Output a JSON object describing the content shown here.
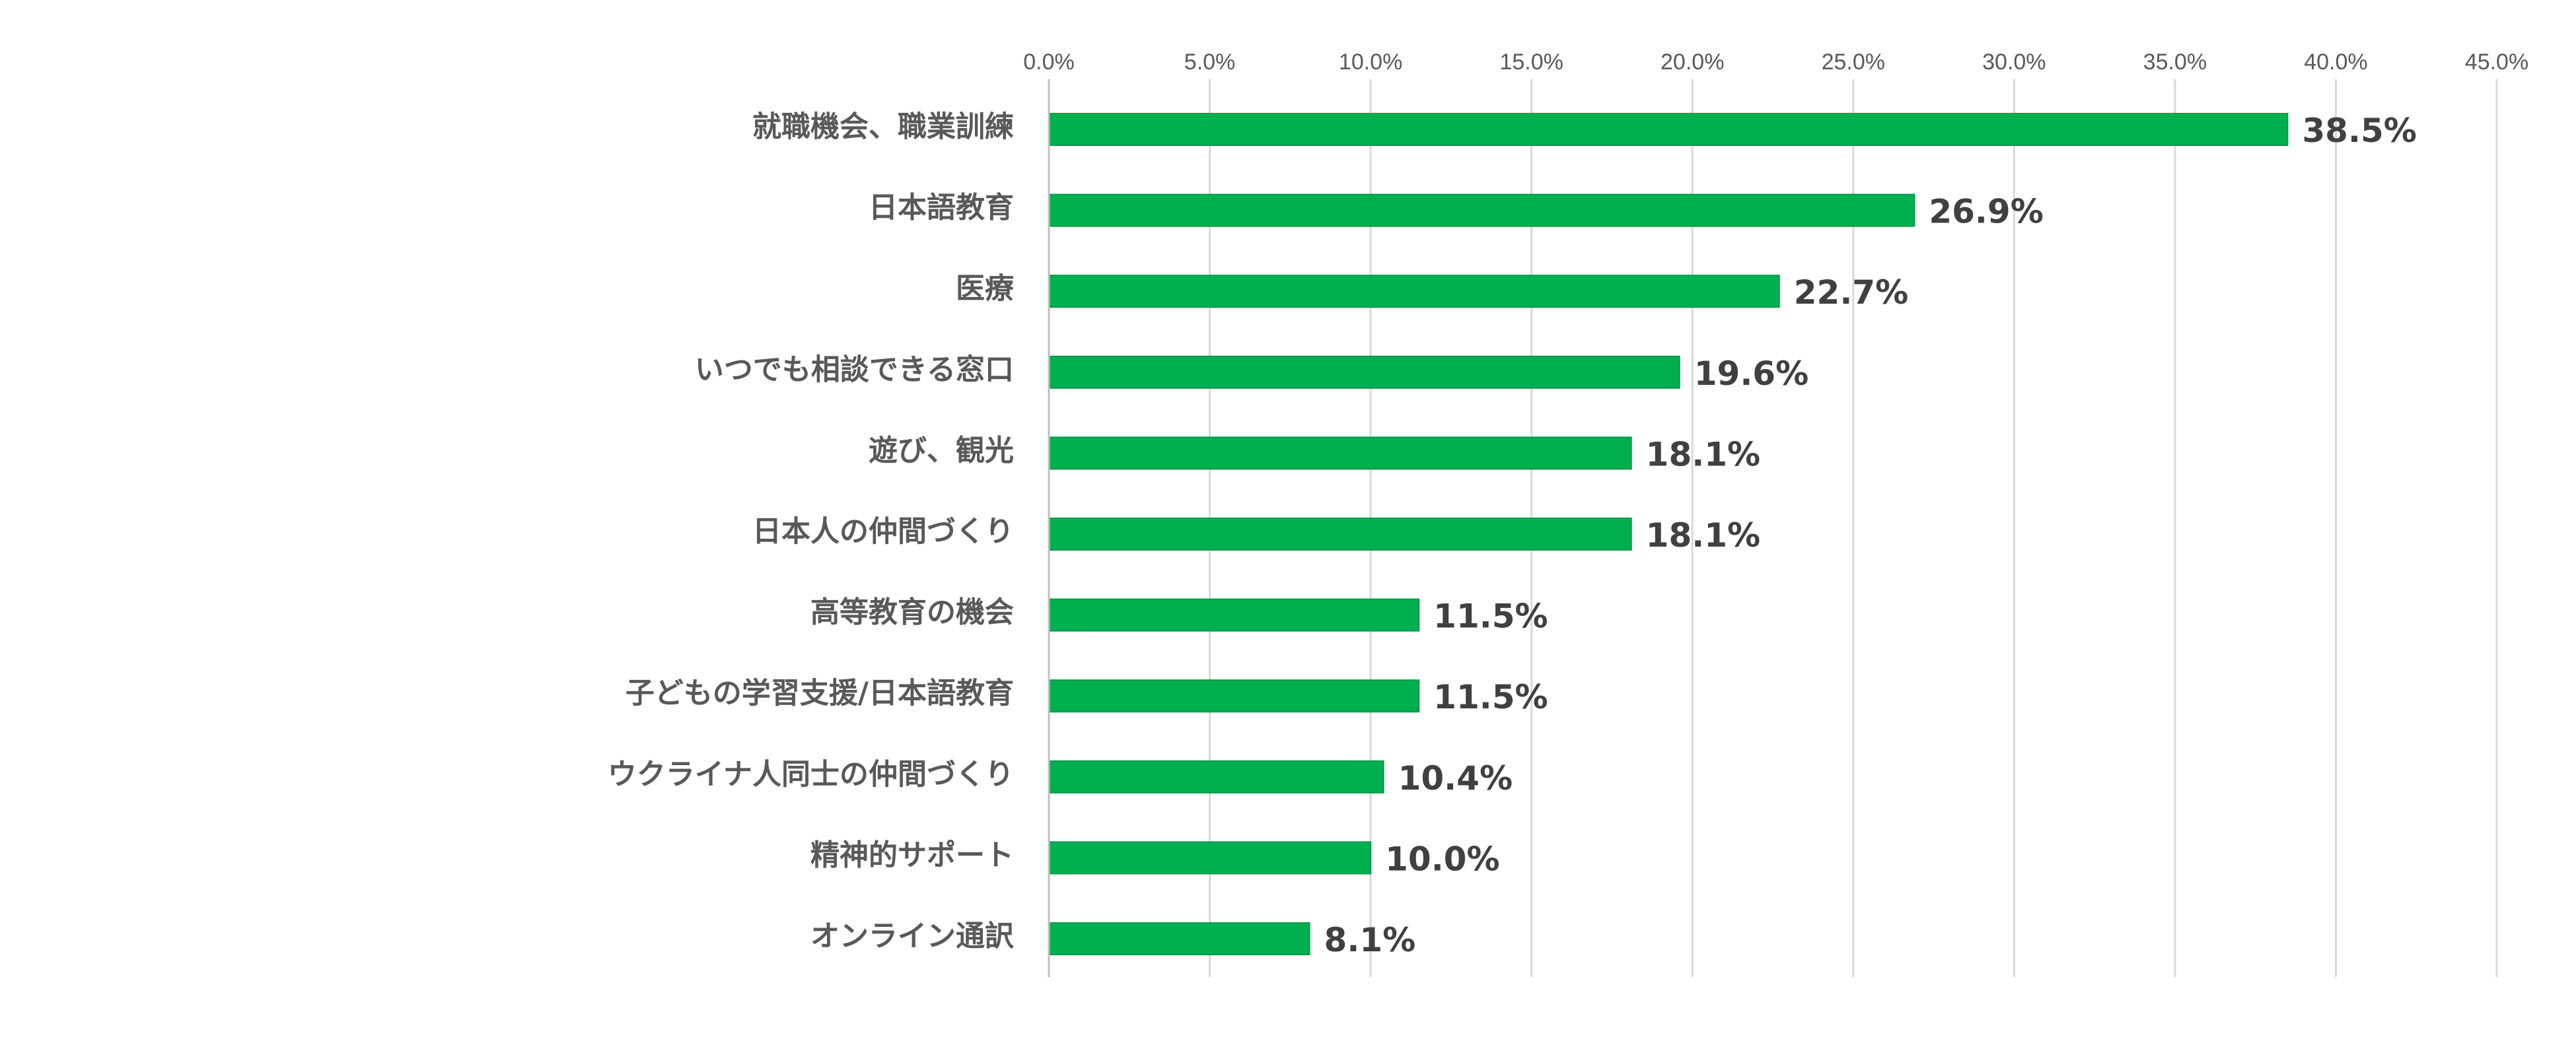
{
  "chart_data": {
    "type": "bar",
    "orientation": "horizontal",
    "title": "",
    "xlabel": "",
    "ylabel": "",
    "categories": [
      "就職機会、職業訓練",
      "日本語教育",
      "医療",
      "いつでも相談できる窓口",
      "遊び、観光",
      "日本人の仲間づくり",
      "高等教育の機会",
      "子どもの学習支援/日本語教育",
      "ウクライナ人同士の仲間づくり",
      "精神的サポート",
      "オンライン通訳"
    ],
    "values": [
      38.5,
      26.9,
      22.7,
      19.6,
      18.1,
      18.1,
      11.5,
      11.5,
      10.4,
      10.0,
      8.1
    ],
    "value_labels": [
      "38.5%",
      "26.9%",
      "22.7%",
      "19.6%",
      "18.1%",
      "18.1%",
      "11.5%",
      "11.5%",
      "10.4%",
      "10.0%",
      "8.1%"
    ],
    "xlim": [
      0,
      45
    ],
    "xticks": [
      0,
      5,
      10,
      15,
      20,
      25,
      30,
      35,
      40,
      45
    ],
    "xtick_labels": [
      "0.0%",
      "5.0%",
      "10.0%",
      "15.0%",
      "20.0%",
      "25.0%",
      "30.0%",
      "35.0%",
      "40.0%",
      "45.0%"
    ],
    "x_axis_position": "top",
    "grid": true,
    "legend": "none",
    "colors": {
      "bar": "#00B050",
      "bar_edge": "#009A46",
      "grid": "#D9D9D9",
      "tick_text": "#595959",
      "category_text": "#595959",
      "value_text": "#404040"
    }
  }
}
